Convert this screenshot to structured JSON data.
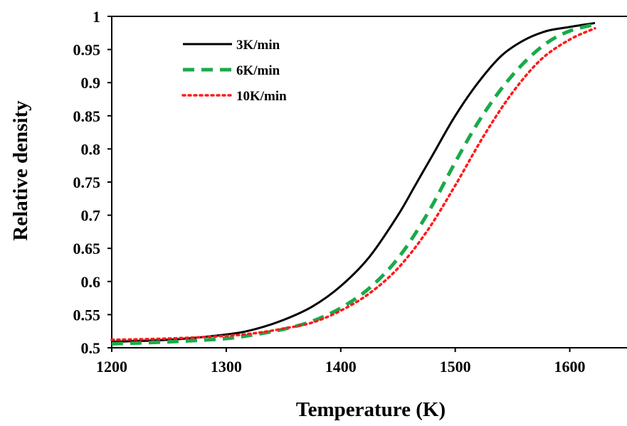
{
  "chart_data": {
    "type": "line",
    "title": "",
    "xlabel": "Temperature (K)",
    "ylabel": "Relative density",
    "xlim": [
      1200,
      1650
    ],
    "ylim": [
      0.5,
      1.0
    ],
    "xticks": [
      1200,
      1300,
      1400,
      1500,
      1600
    ],
    "xtick_labels": [
      "1200",
      "1300",
      "1400",
      "1500",
      "1600"
    ],
    "yticks": [
      0.5,
      0.55,
      0.6,
      0.65,
      0.7,
      0.75,
      0.8,
      0.85,
      0.9,
      0.95,
      1.0
    ],
    "ytick_labels": [
      "0.5",
      "0.55",
      "0.6",
      "0.65",
      "0.7",
      "0.75",
      "0.8",
      "0.85",
      "0.9",
      "0.95",
      "1"
    ],
    "grid": false,
    "legend_position": "top-left",
    "series": [
      {
        "name": "3K/min",
        "color": "#000000",
        "style": "solid",
        "x": [
          1200,
          1250,
          1300,
          1325,
          1350,
          1375,
          1400,
          1425,
          1450,
          1465,
          1480,
          1500,
          1520,
          1540,
          1560,
          1580,
          1600,
          1622
        ],
        "y": [
          0.509,
          0.512,
          0.52,
          0.528,
          0.542,
          0.562,
          0.593,
          0.637,
          0.7,
          0.745,
          0.79,
          0.85,
          0.9,
          0.94,
          0.964,
          0.978,
          0.984,
          0.99
        ]
      },
      {
        "name": "6K/min",
        "color": "#1aaa4a",
        "style": "dashed",
        "x": [
          1200,
          1250,
          1300,
          1325,
          1350,
          1375,
          1400,
          1425,
          1450,
          1475,
          1500,
          1520,
          1540,
          1560,
          1580,
          1600,
          1622
        ],
        "y": [
          0.506,
          0.509,
          0.514,
          0.52,
          0.528,
          0.54,
          0.56,
          0.59,
          0.635,
          0.7,
          0.78,
          0.84,
          0.89,
          0.93,
          0.96,
          0.978,
          0.988
        ]
      },
      {
        "name": "10K/min",
        "color": "#ff1a1a",
        "style": "dotted",
        "x": [
          1200,
          1250,
          1300,
          1325,
          1350,
          1375,
          1400,
          1425,
          1450,
          1475,
          1500,
          1525,
          1550,
          1575,
          1600,
          1622
        ],
        "y": [
          0.512,
          0.514,
          0.518,
          0.522,
          0.529,
          0.538,
          0.556,
          0.582,
          0.62,
          0.675,
          0.745,
          0.82,
          0.885,
          0.935,
          0.965,
          0.982
        ]
      }
    ]
  }
}
